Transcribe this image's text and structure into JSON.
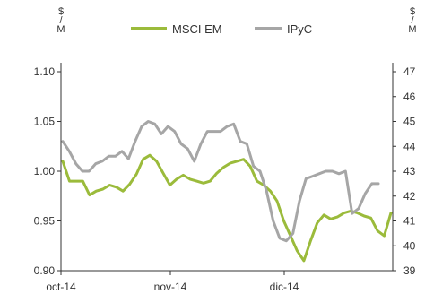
{
  "chart_data": {
    "type": "line",
    "legend_position": "top",
    "left_axis": {
      "unit": "$ / M",
      "unit_lines": [
        "$",
        "/",
        "M"
      ],
      "ylim": [
        0.9,
        1.1
      ],
      "ticks": [
        "0.90",
        "0.95",
        "1.00",
        "1.05",
        "1.10"
      ]
    },
    "right_axis": {
      "unit": "$ / M",
      "unit_lines": [
        "$",
        "/",
        "M"
      ],
      "ylim": [
        39,
        47
      ],
      "ticks": [
        "39",
        "40",
        "41",
        "42",
        "43",
        "44",
        "45",
        "46",
        "47"
      ]
    },
    "x_ticks": [
      "oct-14",
      "nov-14",
      "dic-14"
    ],
    "series": [
      {
        "name": "MSCI EM",
        "axis": "left",
        "color": "#9bbb3b",
        "values": [
          1.01,
          0.99,
          0.99,
          0.99,
          0.976,
          0.98,
          0.982,
          0.986,
          0.984,
          0.98,
          0.987,
          0.997,
          1.012,
          1.016,
          1.01,
          0.998,
          0.986,
          0.992,
          0.996,
          0.992,
          0.99,
          0.988,
          0.99,
          0.998,
          1.004,
          1.008,
          1.01,
          1.012,
          1.005,
          0.99,
          0.986,
          0.98,
          0.97,
          0.95,
          0.935,
          0.92,
          0.91,
          0.93,
          0.948,
          0.956,
          0.952,
          0.954,
          0.958,
          0.96,
          0.958,
          0.955,
          0.953,
          0.94,
          0.935,
          0.958
        ]
      },
      {
        "name": "IPyC",
        "axis": "right",
        "color": "#a6a6a6",
        "values": [
          44.2,
          43.8,
          43.3,
          43.0,
          43.0,
          43.3,
          43.4,
          43.6,
          43.6,
          43.8,
          43.5,
          44.2,
          44.8,
          45.0,
          44.9,
          44.5,
          44.8,
          44.6,
          44.1,
          43.9,
          43.4,
          44.1,
          44.6,
          44.6,
          44.6,
          44.8,
          44.9,
          44.2,
          44.1,
          43.2,
          43.0,
          42.2,
          41.0,
          40.3,
          40.2,
          40.5,
          41.8,
          42.7,
          42.8,
          42.9,
          43.0,
          43.0,
          42.9,
          43.0,
          41.3,
          41.5,
          42.1,
          42.5,
          42.5
        ]
      }
    ]
  }
}
